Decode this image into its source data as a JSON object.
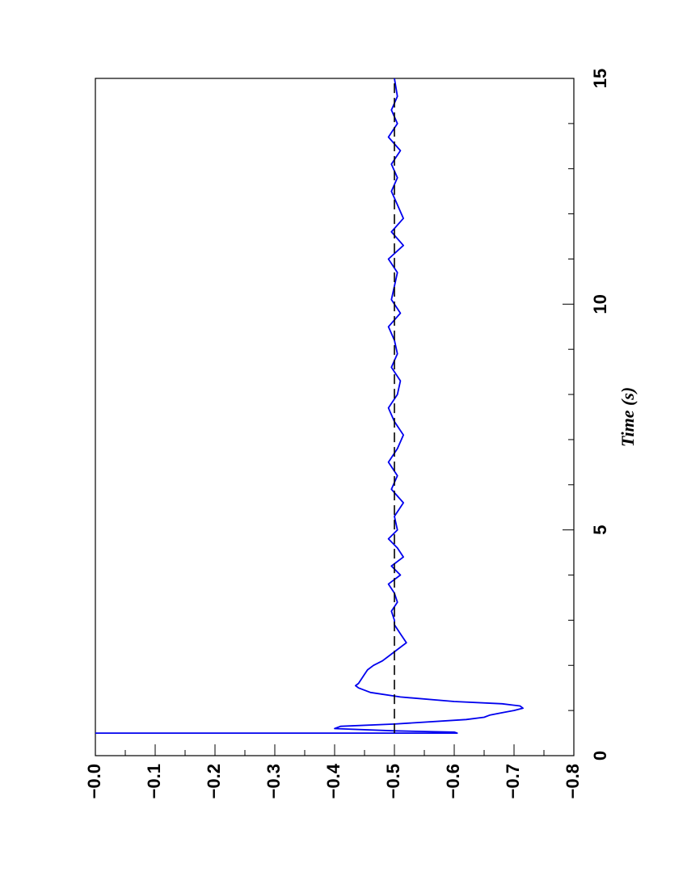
{
  "chart_data": {
    "type": "line",
    "orientation": "rotated-90-clockwise",
    "xlabel": "Time (s)",
    "ylabel": "",
    "xlim": [
      0,
      15
    ],
    "ylim": [
      -0.8,
      0.0
    ],
    "x_ticks": [
      0,
      5,
      10,
      15
    ],
    "x_tick_labels": [
      "0",
      "5",
      "10",
      "15"
    ],
    "y_ticks": [
      0.0,
      -0.1,
      -0.2,
      -0.3,
      -0.4,
      -0.5,
      -0.6,
      -0.7,
      -0.8
    ],
    "y_tick_labels": [
      "−0.0",
      "−0.1",
      "−0.2",
      "−0.3",
      "−0.4",
      "−0.5",
      "−0.6",
      "−0.7",
      "−0.8"
    ],
    "grid": false,
    "series": [
      {
        "color": "#0000ee",
        "style": "solid",
        "x": [
          0.5,
          0.5,
          0.52,
          0.55,
          0.6,
          0.65,
          0.7,
          0.8,
          0.85,
          0.9,
          0.95,
          1.0,
          1.05,
          1.1,
          1.15,
          1.2,
          1.3,
          1.4,
          1.5,
          1.55,
          1.6,
          1.7,
          1.8,
          1.9,
          2.0,
          2.1,
          2.2,
          2.3,
          2.4,
          2.5,
          2.6,
          2.7,
          2.8,
          2.9,
          3.0,
          3.2,
          3.4,
          3.6,
          3.8,
          4.0,
          4.2,
          4.4,
          4.6,
          4.8,
          5.0,
          5.3,
          5.6,
          5.9,
          6.2,
          6.5,
          6.8,
          7.1,
          7.4,
          7.7,
          8.0,
          8.3,
          8.6,
          8.9,
          9.2,
          9.5,
          9.8,
          10.1,
          10.4,
          10.7,
          11.0,
          11.3,
          11.6,
          11.9,
          12.2,
          12.5,
          12.8,
          13.1,
          13.4,
          13.7,
          14.0,
          14.3,
          14.6,
          15.0
        ],
        "values": [
          0.0,
          -0.605,
          -0.6,
          -0.5,
          -0.4,
          -0.41,
          -0.5,
          -0.62,
          -0.65,
          -0.66,
          -0.68,
          -0.7,
          -0.715,
          -0.71,
          -0.68,
          -0.6,
          -0.51,
          -0.46,
          -0.44,
          -0.435,
          -0.44,
          -0.445,
          -0.45,
          -0.455,
          -0.465,
          -0.48,
          -0.49,
          -0.5,
          -0.51,
          -0.52,
          -0.515,
          -0.51,
          -0.505,
          -0.5,
          -0.5,
          -0.495,
          -0.505,
          -0.5,
          -0.49,
          -0.51,
          -0.495,
          -0.515,
          -0.505,
          -0.49,
          -0.505,
          -0.5,
          -0.515,
          -0.495,
          -0.505,
          -0.49,
          -0.505,
          -0.515,
          -0.5,
          -0.49,
          -0.505,
          -0.51,
          -0.495,
          -0.505,
          -0.5,
          -0.49,
          -0.51,
          -0.495,
          -0.5,
          -0.505,
          -0.49,
          -0.515,
          -0.495,
          -0.515,
          -0.505,
          -0.495,
          -0.505,
          -0.495,
          -0.51,
          -0.49,
          -0.505,
          -0.495,
          -0.505,
          -0.5
        ]
      },
      {
        "color": "#000000",
        "style": "dashed",
        "x": [
          0.5,
          15
        ],
        "values": [
          -0.5,
          -0.5
        ]
      }
    ]
  }
}
